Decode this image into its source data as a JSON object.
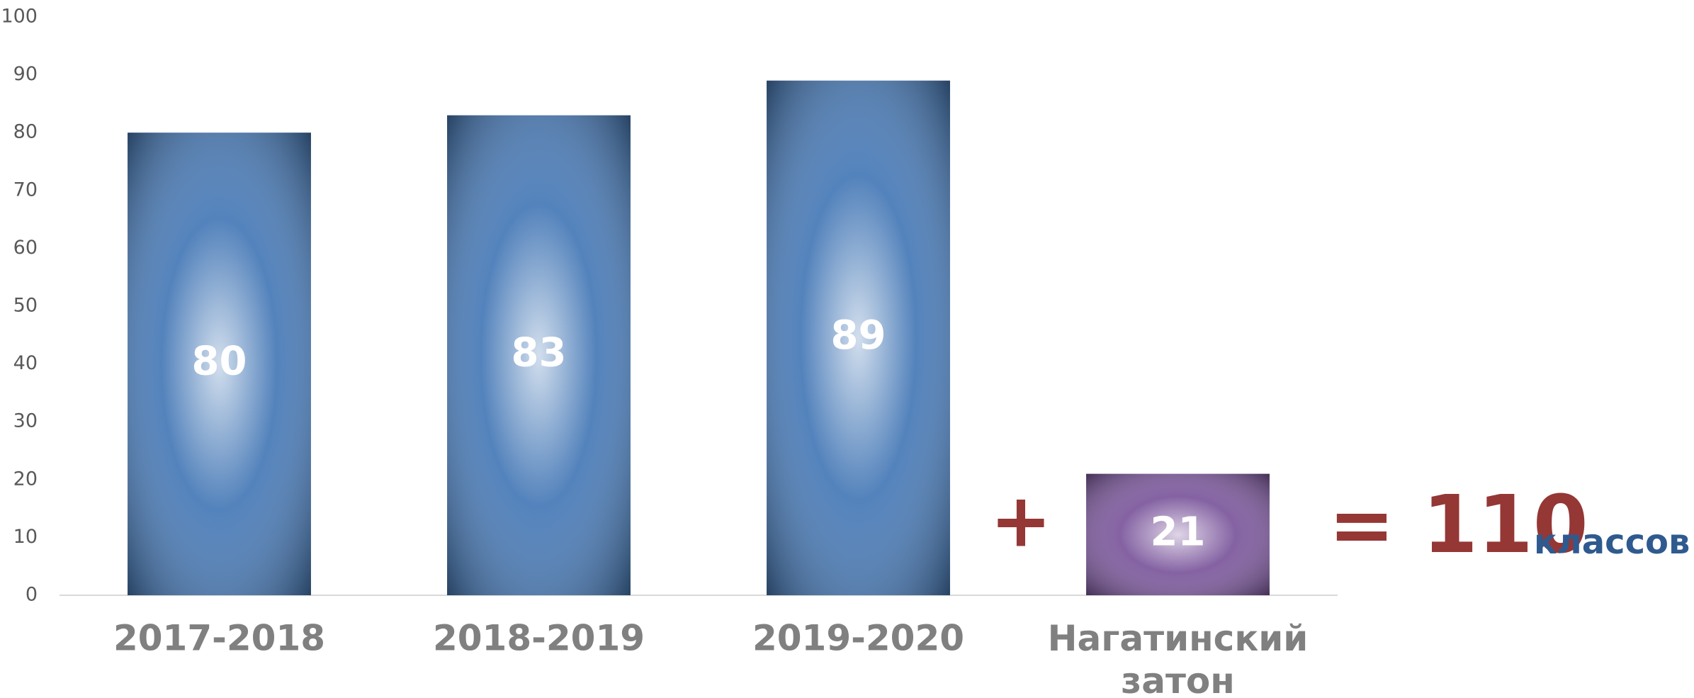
{
  "chart_data": {
    "type": "bar",
    "categories": [
      "2017-2018",
      "2018-2019",
      "2019-2020",
      "Нагатинский затон"
    ],
    "values": [
      80,
      83,
      89,
      21
    ],
    "colors": [
      "#4a7cb8",
      "#4a7cb8",
      "#4a7cb8",
      "#7e5a9e"
    ],
    "ylim": [
      0,
      100
    ],
    "yticks": [
      0,
      10,
      20,
      30,
      40,
      50,
      60,
      70,
      80,
      90,
      100
    ],
    "grid": false,
    "annotations": [
      {
        "text": "+",
        "color": "#953735"
      },
      {
        "text": "= 110",
        "color": "#953735"
      },
      {
        "text": "классов",
        "color": "#2f5a8f"
      }
    ]
  }
}
